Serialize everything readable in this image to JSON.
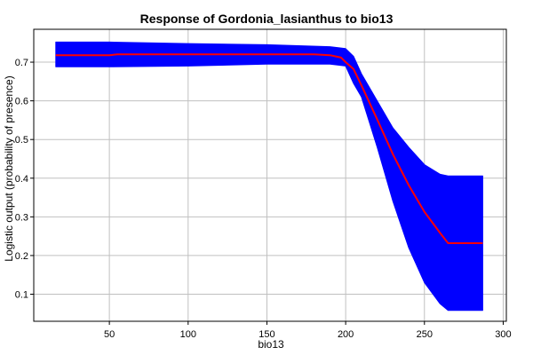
{
  "chart_data": {
    "type": "line",
    "title": "Response of Gordonia_lasianthus to bio13",
    "xlabel": "bio13",
    "ylabel": "Logistic output (probability of presence)",
    "xlim": [
      2,
      302
    ],
    "ylim": [
      0.03,
      0.785
    ],
    "x_ticks": [
      50,
      100,
      150,
      200,
      250,
      300
    ],
    "y_ticks": [
      0.1,
      0.2,
      0.3,
      0.4,
      0.5,
      0.6,
      0.7
    ],
    "grid": true,
    "colors": {
      "mean": "#ff0000",
      "band": "#0000ff",
      "grid": "#c0c0c0"
    },
    "series": [
      {
        "role": "mean",
        "x": [
          16,
          50,
          55,
          100,
          150,
          180,
          190,
          197,
          200,
          205,
          210,
          220,
          230,
          240,
          250,
          260,
          265,
          287
        ],
        "y": [
          0.718,
          0.718,
          0.72,
          0.72,
          0.72,
          0.72,
          0.718,
          0.712,
          0.7,
          0.682,
          0.64,
          0.552,
          0.462,
          0.382,
          0.313,
          0.258,
          0.232,
          0.232
        ]
      },
      {
        "role": "upper",
        "x": [
          16,
          50,
          100,
          150,
          190,
          200,
          205,
          210,
          220,
          230,
          240,
          250,
          260,
          265,
          287
        ],
        "y": [
          0.752,
          0.752,
          0.748,
          0.745,
          0.74,
          0.735,
          0.715,
          0.67,
          0.6,
          0.53,
          0.48,
          0.435,
          0.41,
          0.406,
          0.406
        ]
      },
      {
        "role": "lower",
        "x": [
          16,
          50,
          100,
          150,
          190,
          200,
          205,
          210,
          220,
          230,
          240,
          250,
          260,
          265,
          287
        ],
        "y": [
          0.688,
          0.688,
          0.69,
          0.695,
          0.695,
          0.69,
          0.645,
          0.61,
          0.48,
          0.34,
          0.22,
          0.13,
          0.075,
          0.058,
          0.058
        ]
      }
    ]
  }
}
